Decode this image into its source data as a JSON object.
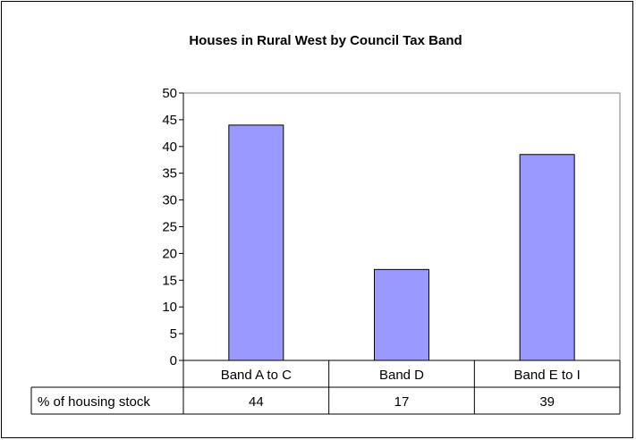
{
  "chart_data": {
    "type": "bar",
    "title": "Houses in Rural West by Council Tax Band",
    "categories": [
      "Band A to C",
      "Band D",
      "Band E to I"
    ],
    "series": [
      {
        "name": "% of housing stock",
        "values": [
          44,
          17,
          38.5
        ],
        "color": "#9999ff"
      }
    ],
    "data_table": {
      "row_label": "% of housing stock",
      "values": [
        "44",
        "17",
        "39"
      ]
    },
    "y_ticks": [
      "0",
      "5",
      "10",
      "15",
      "20",
      "25",
      "30",
      "35",
      "40",
      "45",
      "50"
    ],
    "ylim": [
      0,
      50
    ],
    "grid": false,
    "legend": "data-table"
  }
}
